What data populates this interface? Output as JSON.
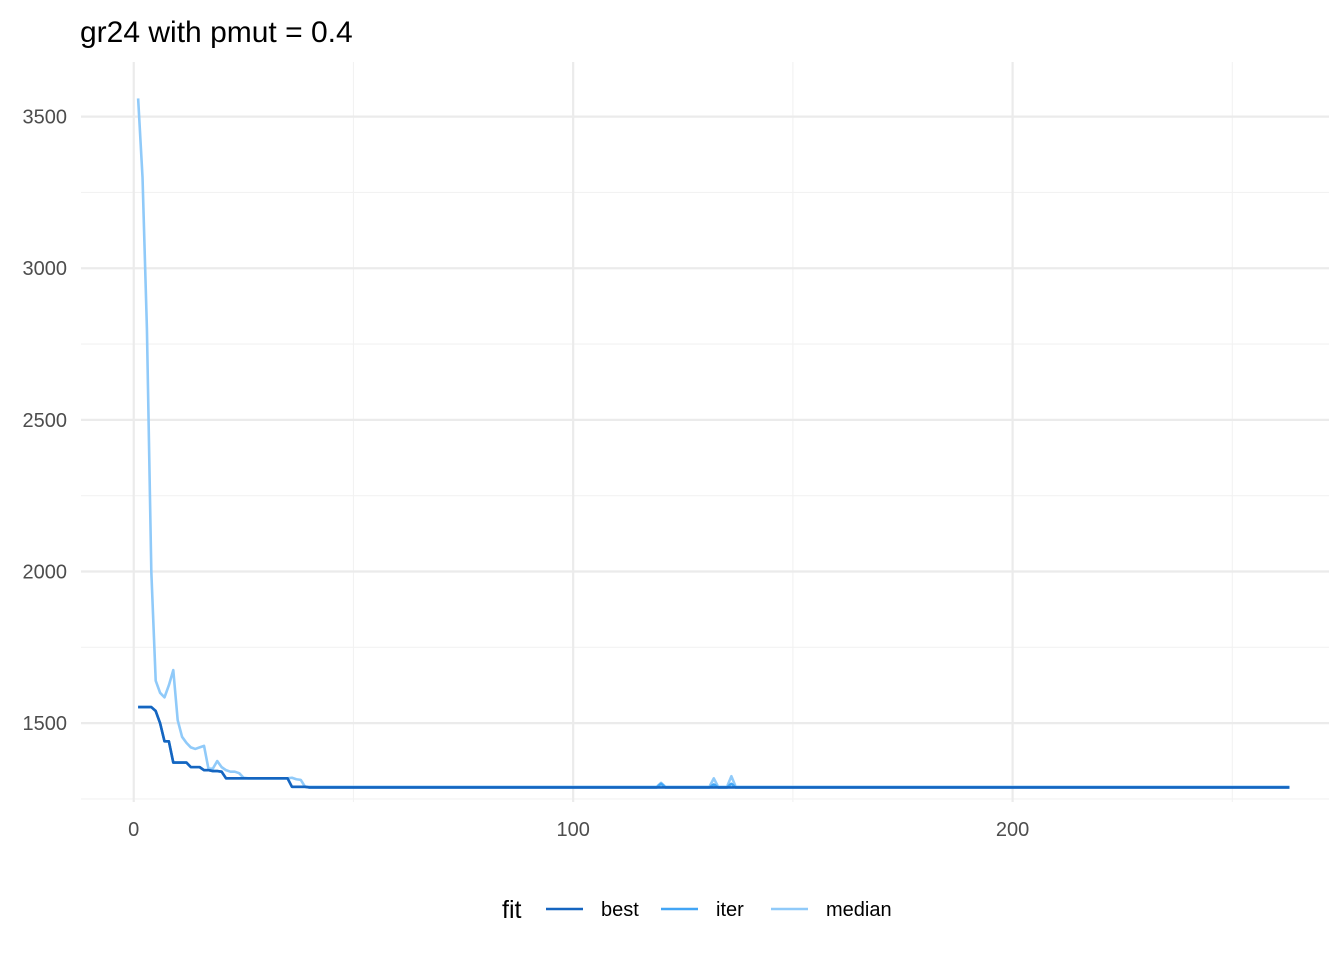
{
  "chart_data": {
    "type": "line",
    "title": "gr24 with pmut = 0.4",
    "xlabel": "",
    "ylabel": "",
    "xlim": [
      -12,
      272
    ],
    "ylim": [
      1240,
      3680
    ],
    "x_ticks": [
      0,
      100,
      200
    ],
    "x_tick_labels": [
      "0",
      "100",
      "200"
    ],
    "x_minor_ticks": [
      50,
      150,
      250
    ],
    "y_ticks": [
      1500,
      2000,
      2500,
      3000,
      3500
    ],
    "y_tick_labels": [
      "1500",
      "2000",
      "2500",
      "3000",
      "3500"
    ],
    "y_minor_ticks": [
      1250,
      1750,
      2250,
      2750,
      3250
    ],
    "grid": true,
    "legend": {
      "title": "fit",
      "position": "bottom",
      "entries": [
        "best",
        "iter",
        "median"
      ]
    },
    "series": [
      {
        "name": "best",
        "color": "#1565c0",
        "points": [
          [
            1,
            1553
          ],
          [
            2,
            1553
          ],
          [
            3,
            1553
          ],
          [
            4,
            1553
          ],
          [
            5,
            1540
          ],
          [
            6,
            1500
          ],
          [
            7,
            1440
          ],
          [
            8,
            1440
          ],
          [
            9,
            1370
          ],
          [
            10,
            1370
          ],
          [
            11,
            1370
          ],
          [
            12,
            1370
          ],
          [
            13,
            1355
          ],
          [
            14,
            1355
          ],
          [
            15,
            1355
          ],
          [
            16,
            1345
          ],
          [
            17,
            1345
          ],
          [
            18,
            1342
          ],
          [
            19,
            1342
          ],
          [
            20,
            1340
          ],
          [
            21,
            1318
          ],
          [
            22,
            1318
          ],
          [
            23,
            1318
          ],
          [
            24,
            1318
          ],
          [
            25,
            1318
          ],
          [
            26,
            1318
          ],
          [
            27,
            1318
          ],
          [
            28,
            1318
          ],
          [
            29,
            1318
          ],
          [
            30,
            1318
          ],
          [
            31,
            1318
          ],
          [
            32,
            1318
          ],
          [
            33,
            1318
          ],
          [
            34,
            1318
          ],
          [
            35,
            1318
          ],
          [
            36,
            1290
          ],
          [
            37,
            1290
          ],
          [
            38,
            1290
          ],
          [
            39,
            1290
          ],
          [
            40,
            1288
          ],
          [
            263,
            1288
          ]
        ]
      },
      {
        "name": "iter",
        "color": "#42a5f5",
        "points": [
          [
            1,
            1553
          ],
          [
            2,
            1553
          ],
          [
            3,
            1553
          ],
          [
            4,
            1553
          ],
          [
            5,
            1540
          ],
          [
            6,
            1500
          ],
          [
            7,
            1440
          ],
          [
            8,
            1440
          ],
          [
            9,
            1370
          ],
          [
            10,
            1370
          ],
          [
            11,
            1370
          ],
          [
            12,
            1370
          ],
          [
            13,
            1355
          ],
          [
            14,
            1355
          ],
          [
            15,
            1355
          ],
          [
            16,
            1345
          ],
          [
            17,
            1345
          ],
          [
            18,
            1342
          ],
          [
            19,
            1342
          ],
          [
            20,
            1340
          ],
          [
            21,
            1318
          ],
          [
            22,
            1318
          ],
          [
            23,
            1318
          ],
          [
            24,
            1318
          ],
          [
            25,
            1318
          ],
          [
            26,
            1318
          ],
          [
            27,
            1318
          ],
          [
            28,
            1318
          ],
          [
            29,
            1318
          ],
          [
            30,
            1318
          ],
          [
            31,
            1318
          ],
          [
            32,
            1318
          ],
          [
            33,
            1318
          ],
          [
            34,
            1318
          ],
          [
            35,
            1318
          ],
          [
            36,
            1290
          ],
          [
            37,
            1290
          ],
          [
            38,
            1290
          ],
          [
            39,
            1290
          ],
          [
            40,
            1288
          ],
          [
            119,
            1288
          ],
          [
            120,
            1300
          ],
          [
            121,
            1288
          ],
          [
            131,
            1288
          ],
          [
            132,
            1298
          ],
          [
            133,
            1288
          ],
          [
            135,
            1288
          ],
          [
            136,
            1300
          ],
          [
            137,
            1288
          ],
          [
            263,
            1288
          ]
        ]
      },
      {
        "name": "median",
        "color": "#90caf9",
        "points": [
          [
            1,
            3560
          ],
          [
            2,
            3300
          ],
          [
            3,
            2800
          ],
          [
            4,
            2000
          ],
          [
            5,
            1640
          ],
          [
            6,
            1600
          ],
          [
            7,
            1585
          ],
          [
            8,
            1625
          ],
          [
            9,
            1675
          ],
          [
            10,
            1510
          ],
          [
            11,
            1455
          ],
          [
            12,
            1435
          ],
          [
            13,
            1420
          ],
          [
            14,
            1415
          ],
          [
            15,
            1420
          ],
          [
            16,
            1425
          ],
          [
            17,
            1350
          ],
          [
            18,
            1350
          ],
          [
            19,
            1375
          ],
          [
            20,
            1355
          ],
          [
            21,
            1345
          ],
          [
            22,
            1340
          ],
          [
            23,
            1340
          ],
          [
            24,
            1335
          ],
          [
            25,
            1320
          ],
          [
            26,
            1318
          ],
          [
            27,
            1318
          ],
          [
            28,
            1318
          ],
          [
            29,
            1318
          ],
          [
            30,
            1318
          ],
          [
            31,
            1318
          ],
          [
            32,
            1318
          ],
          [
            33,
            1318
          ],
          [
            34,
            1318
          ],
          [
            35,
            1318
          ],
          [
            36,
            1320
          ],
          [
            37,
            1315
          ],
          [
            38,
            1313
          ],
          [
            39,
            1290
          ],
          [
            40,
            1290
          ],
          [
            119,
            1290
          ],
          [
            120,
            1303
          ],
          [
            121,
            1290
          ],
          [
            131,
            1290
          ],
          [
            132,
            1318
          ],
          [
            133,
            1290
          ],
          [
            135,
            1290
          ],
          [
            136,
            1325
          ],
          [
            137,
            1290
          ],
          [
            263,
            1290
          ]
        ]
      }
    ]
  }
}
